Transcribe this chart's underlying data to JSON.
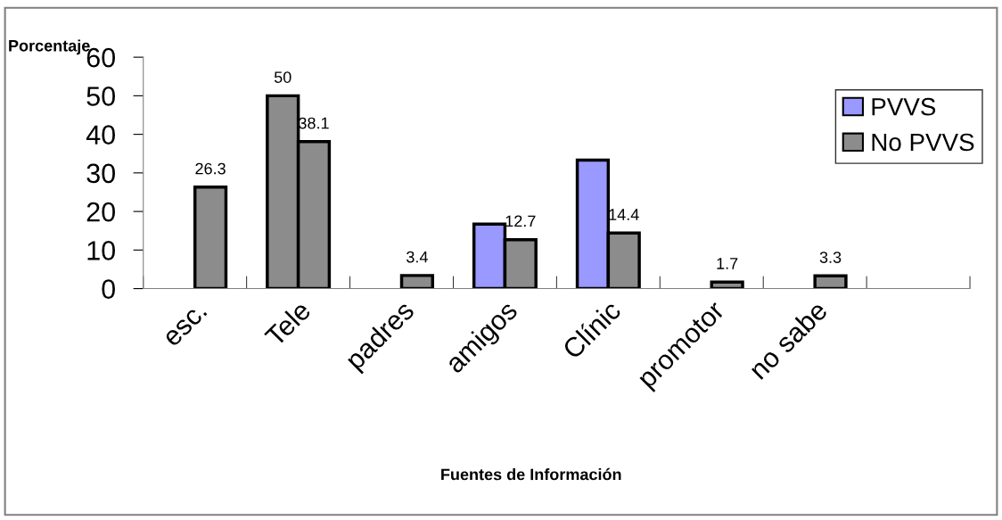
{
  "chart_data": {
    "type": "bar",
    "xlabel": "Fuentes de Información",
    "ylabel": "Porcentaje",
    "categories": [
      "esc.",
      "Tele",
      "padres",
      "amigos",
      "Clínic",
      "promotor",
      "no sabe",
      null
    ],
    "series": [
      {
        "name": "PVVS",
        "color": "#9999ff",
        "colors": [
          "#9999ff",
          "#8c8c8c",
          "#9999ff",
          "#9999ff",
          "#9999ff",
          "#9999ff",
          "#9999ff",
          "#9999ff"
        ],
        "values": [
          null,
          50,
          null,
          16.7,
          33.3,
          null,
          null,
          null
        ],
        "value_labels": [
          null,
          "50",
          null,
          null,
          null,
          null,
          null,
          null
        ]
      },
      {
        "name": "No PVVS",
        "color": "#8c8c8c",
        "values": [
          26.3,
          38.1,
          3.4,
          12.7,
          14.4,
          1.7,
          3.3,
          null
        ],
        "value_labels": [
          "26.3",
          "38.1",
          "3.4",
          "12.7",
          "14.4",
          "1.7",
          "3.3",
          null
        ]
      }
    ],
    "ylim": [
      0,
      60
    ],
    "yticks": [
      0,
      10,
      20,
      30,
      40,
      50,
      60
    ],
    "grid": false,
    "legend": "right"
  }
}
